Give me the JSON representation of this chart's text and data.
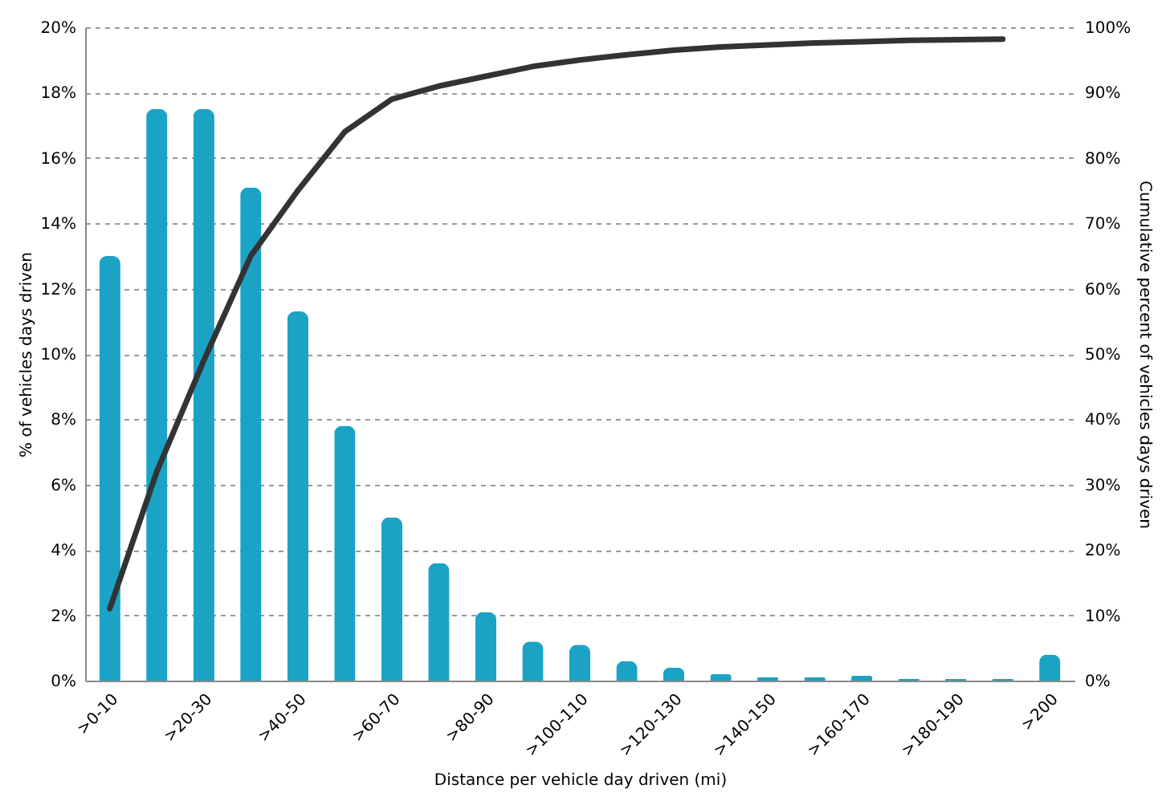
{
  "chart_data": {
    "type": "bar",
    "xlabel": "Distance per vehicle day driven (mi)",
    "ylabel": "% of vehicles days driven",
    "y2label": "Cumulative percent of vehicles days driven",
    "categories": [
      ">0-10",
      null,
      ">20-30",
      null,
      ">40-50",
      null,
      ">60-70",
      null,
      ">80-90",
      null,
      ">100-110",
      null,
      ">120-130",
      null,
      ">140-150",
      null,
      ">160-170",
      null,
      ">180-190",
      null,
      ">200"
    ],
    "series": [
      {
        "color": "#1ba3c6",
        "values": [
          13,
          17.5,
          17.5,
          15.1,
          11.3,
          7.8,
          5.0,
          3.6,
          2.1,
          1.2,
          1.1,
          0.6,
          0.4,
          0.2,
          0.1,
          0.1,
          0.15,
          0.05,
          0.05,
          0.05,
          0.8
        ]
      },
      {
        "type": "line",
        "color": "#333333",
        "axis": "y2",
        "values": [
          11,
          32,
          49,
          65,
          75,
          84,
          89,
          91,
          92.5,
          94,
          95,
          95.8,
          96.5,
          97,
          97.3,
          97.6,
          97.8,
          98,
          98.1,
          98.2,
          null
        ]
      }
    ],
    "ylim": [
      0,
      20
    ],
    "yticks": [
      {
        "value": 0,
        "label": "0%"
      },
      {
        "value": 2,
        "label": "2%"
      },
      {
        "value": 4,
        "label": "4%"
      },
      {
        "value": 6,
        "label": "6%"
      },
      {
        "value": 8,
        "label": "8%"
      },
      {
        "value": 10,
        "label": "10%"
      },
      {
        "value": 12,
        "label": "12%"
      },
      {
        "value": 14,
        "label": "14%"
      },
      {
        "value": 16,
        "label": "16%"
      },
      {
        "value": 18,
        "label": "18%"
      },
      {
        "value": 20,
        "label": "20%"
      }
    ],
    "y2lim": [
      0,
      100
    ],
    "y2ticks": [
      {
        "value": 0,
        "label": "0%"
      },
      {
        "value": 10,
        "label": "10%"
      },
      {
        "value": 20,
        "label": "20%"
      },
      {
        "value": 30,
        "label": "30%"
      },
      {
        "value": 40,
        "label": "40%"
      },
      {
        "value": 50,
        "label": "50%"
      },
      {
        "value": 60,
        "label": "60%"
      },
      {
        "value": 70,
        "label": "70%"
      },
      {
        "value": 80,
        "label": "80%"
      },
      {
        "value": 90,
        "label": "90%"
      },
      {
        "value": 100,
        "label": "100%"
      }
    ],
    "grid": "y"
  }
}
